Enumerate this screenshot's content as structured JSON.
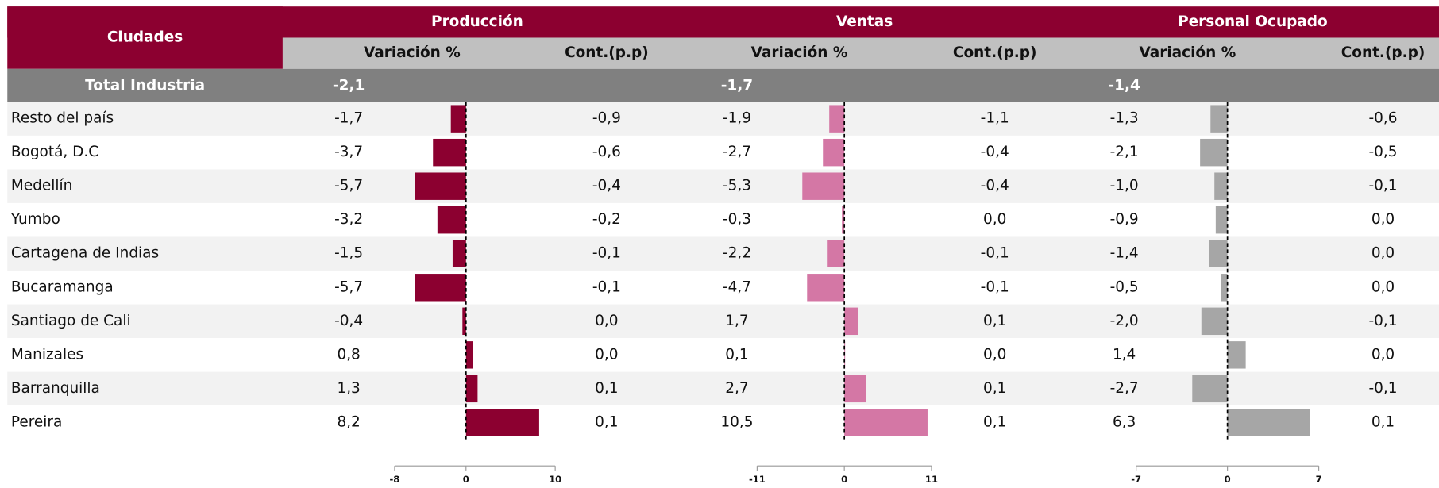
{
  "table": {
    "city_header": "Ciudades",
    "total_label": "Total Industria",
    "cities": [
      "Resto del país",
      "Bogotá, D.C",
      "Medellín",
      "Yumbo",
      "Cartagena de Indias",
      "Bucaramanga",
      "Santiago de Cali",
      "Manizales",
      "Barranquilla",
      "Pereira"
    ],
    "groups": [
      {
        "name": "Producción",
        "variation_header": "Variación %",
        "contribution_header": "Cont.(p.p)",
        "color": "#8c0030",
        "xlim": [
          -8,
          10
        ],
        "xticks": [
          -8,
          0,
          10
        ],
        "total": "-2,1",
        "variation": {
          "values": [
            -1.7,
            -3.7,
            -5.7,
            -3.2,
            -1.5,
            -5.7,
            -0.4,
            0.8,
            1.3,
            8.2
          ],
          "value_labels": [
            "-1,7",
            "-3,7",
            "-5,7",
            "-3,2",
            "-1,5",
            "-5,7",
            "-0,4",
            "0,8",
            "1,3",
            "8,2"
          ]
        },
        "contribution": [
          "-0,9",
          "-0,6",
          "-0,4",
          "-0,2",
          "-0,1",
          "-0,1",
          "0,0",
          "0,0",
          "0,1",
          "0,1"
        ]
      },
      {
        "name": "Ventas",
        "variation_header": "Variación %",
        "contribution_header": "Cont.(p.p)",
        "color": "#d477a5",
        "xlim": [
          -11,
          11
        ],
        "xticks": [
          -11,
          0,
          11
        ],
        "total": "-1,7",
        "variation": {
          "values": [
            -1.9,
            -2.7,
            -5.3,
            -0.3,
            -2.2,
            -4.7,
            1.7,
            0.1,
            2.7,
            10.5
          ],
          "value_labels": [
            "-1,9",
            "-2,7",
            "-5,3",
            "-0,3",
            "-2,2",
            "-4,7",
            "1,7",
            "0,1",
            "2,7",
            "10,5"
          ]
        },
        "contribution": [
          "-1,1",
          "-0,4",
          "-0,4",
          "0,0",
          "-0,1",
          "-0,1",
          "0,1",
          "0,0",
          "0,1",
          "0,1"
        ]
      },
      {
        "name": "Personal Ocupado",
        "variation_header": "Variación %",
        "contribution_header": "Cont.(p.p)",
        "color": "#a6a6a6",
        "xlim": [
          -7,
          7
        ],
        "xticks": [
          -7,
          0,
          7
        ],
        "total": "-1,4",
        "variation": {
          "values": [
            -1.3,
            -2.1,
            -1.0,
            -0.9,
            -1.4,
            -0.5,
            -2.0,
            1.4,
            -2.7,
            6.3
          ],
          "value_labels": [
            "-1,3",
            "-2,1",
            "-1,0",
            "-0,9",
            "-1,4",
            "-0,5",
            "-2,0",
            "1,4",
            "-2,7",
            "6,3"
          ]
        },
        "contribution": [
          "-0,6",
          "-0,5",
          "-0,1",
          "0,0",
          "0,0",
          "0,0",
          "-0,1",
          "0,0",
          "-0,1",
          "0,1"
        ]
      }
    ]
  }
}
